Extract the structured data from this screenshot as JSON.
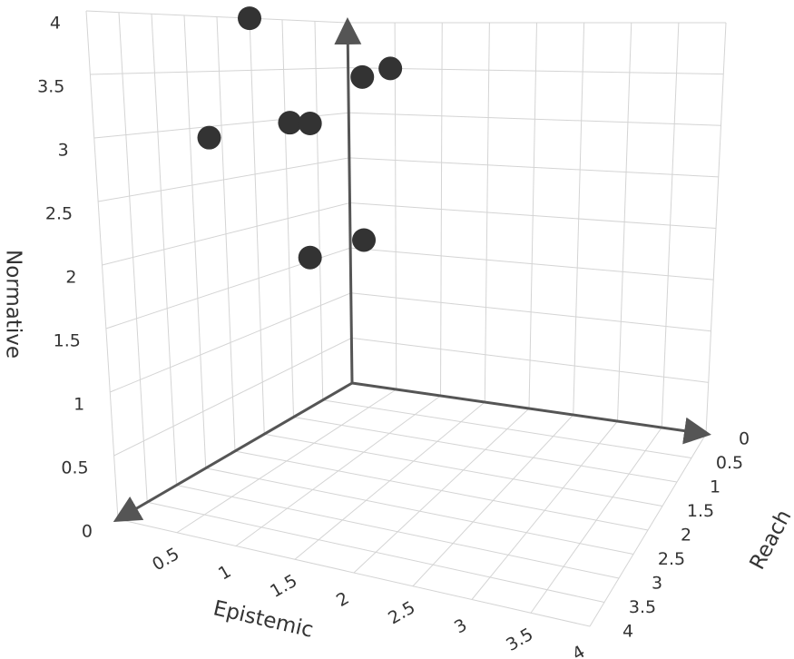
{
  "chart_data": {
    "type": "scatter3d",
    "x_label": "Epistemic",
    "y_label": "Reach",
    "z_label": "Normative",
    "xlim": [
      0,
      4
    ],
    "ylim": [
      0,
      4
    ],
    "zlim": [
      0,
      4
    ],
    "xticks": [
      0.5,
      1,
      1.5,
      2,
      2.5,
      3,
      3.5,
      4
    ],
    "yticks": [
      0,
      0.5,
      1,
      1.5,
      2,
      2.5,
      3,
      3.5,
      4
    ],
    "zticks": [
      0,
      0.5,
      1,
      1.5,
      2,
      2.5,
      3,
      3.5,
      4
    ],
    "grid": true,
    "series": [
      {
        "color": "#333333",
        "x": [
          0,
          0,
          0.3,
          0.5,
          0.15,
          0.45,
          0.15,
          0.4
        ],
        "y": [
          1.5,
          2.2,
          1.4,
          1.4,
          0,
          0,
          0,
          1.3
        ],
        "z": [
          4.0,
          2.9,
          3.0,
          3.0,
          3.4,
          3.5,
          1.6,
          1.7
        ]
      }
    ]
  }
}
